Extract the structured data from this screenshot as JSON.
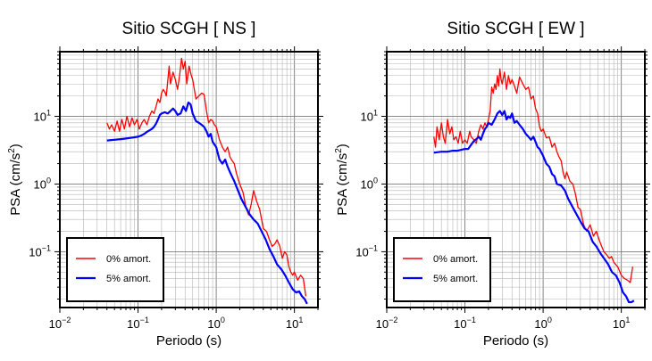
{
  "chart_data": [
    {
      "type": "line",
      "title": "Sitio SCGH [ NS ]",
      "xlabel": "Periodo (s)",
      "ylabel_main": "PSA (cm/s",
      "ylabel_sup": "2",
      "ylabel_tail": ")",
      "x_scale": "log",
      "y_scale": "log",
      "xlim": [
        0.01,
        20
      ],
      "ylim": [
        0.015,
        90
      ],
      "grid": true,
      "legend_position": "bottom-left",
      "x_ticks": [
        {
          "value": 0.01,
          "base": "10",
          "exp": "−2"
        },
        {
          "value": 0.1,
          "base": "10",
          "exp": "−1"
        },
        {
          "value": 1,
          "base": "10",
          "exp": "0"
        },
        {
          "value": 10,
          "base": "10",
          "exp": "1"
        }
      ],
      "y_ticks": [
        {
          "value": 0.1,
          "base": "10",
          "exp": "−1"
        },
        {
          "value": 1,
          "base": "10",
          "exp": "0"
        },
        {
          "value": 10,
          "base": "10",
          "exp": "1"
        }
      ],
      "series": [
        {
          "name": "0% amort.",
          "color": "#ff0000",
          "x": [
            0.04,
            0.043,
            0.046,
            0.05,
            0.054,
            0.058,
            0.062,
            0.067,
            0.072,
            0.078,
            0.084,
            0.09,
            0.097,
            0.104,
            0.112,
            0.12,
            0.13,
            0.14,
            0.15,
            0.16,
            0.17,
            0.18,
            0.19,
            0.2,
            0.21,
            0.22,
            0.23,
            0.24,
            0.25,
            0.26,
            0.28,
            0.3,
            0.32,
            0.34,
            0.36,
            0.38,
            0.4,
            0.42,
            0.45,
            0.48,
            0.5,
            0.55,
            0.6,
            0.65,
            0.7,
            0.75,
            0.8,
            0.85,
            0.9,
            0.95,
            1.0,
            1.1,
            1.2,
            1.3,
            1.4,
            1.5,
            1.6,
            1.7,
            1.8,
            1.9,
            2.0,
            2.2,
            2.4,
            2.6,
            2.8,
            3.0,
            3.3,
            3.6,
            4.0,
            4.4,
            4.8,
            5.2,
            5.6,
            6.0,
            6.5,
            7.0,
            7.5,
            8.0,
            8.5,
            9.0,
            9.5,
            10.0,
            11.0,
            12.0,
            13.0,
            14.0
          ],
          "y": [
            8.0,
            6.5,
            7.5,
            6.0,
            8.5,
            6.0,
            9.0,
            6.5,
            10.0,
            7.0,
            9.5,
            7.5,
            9.0,
            6.5,
            8.0,
            9.0,
            7.5,
            10.0,
            12.0,
            11.0,
            14.0,
            18.0,
            16.0,
            22.0,
            25.0,
            23.0,
            20.0,
            33.0,
            55.0,
            30.0,
            45.0,
            35.0,
            25.0,
            40.0,
            72.0,
            50.0,
            65.0,
            30.0,
            55.0,
            40.0,
            35.0,
            18.0,
            20.0,
            22.0,
            21.0,
            12.0,
            8.0,
            9.0,
            8.5,
            7.5,
            7.0,
            4.5,
            3.5,
            3.0,
            3.5,
            2.5,
            2.2,
            2.0,
            1.5,
            1.2,
            1.0,
            0.75,
            0.45,
            0.35,
            0.5,
            0.8,
            0.55,
            0.42,
            0.22,
            0.2,
            0.15,
            0.12,
            0.13,
            0.15,
            0.12,
            0.08,
            0.1,
            0.09,
            0.06,
            0.05,
            0.045,
            0.05,
            0.038,
            0.045,
            0.04,
            0.022
          ]
        },
        {
          "name": "5% amort.",
          "color": "#0000ff",
          "x": [
            0.04,
            0.05,
            0.06,
            0.07,
            0.08,
            0.09,
            0.1,
            0.11,
            0.12,
            0.13,
            0.14,
            0.15,
            0.16,
            0.17,
            0.18,
            0.19,
            0.2,
            0.22,
            0.24,
            0.26,
            0.28,
            0.3,
            0.32,
            0.35,
            0.38,
            0.41,
            0.44,
            0.47,
            0.5,
            0.55,
            0.6,
            0.65,
            0.7,
            0.75,
            0.8,
            0.85,
            0.9,
            1.0,
            1.1,
            1.2,
            1.3,
            1.4,
            1.5,
            1.7,
            1.9,
            2.1,
            2.4,
            2.7,
            3.0,
            3.4,
            3.8,
            4.3,
            4.8,
            5.4,
            6.0,
            6.8,
            7.6,
            8.5,
            9.5,
            10.5,
            11.5,
            12.5,
            13.5,
            14.5
          ],
          "y": [
            4.4,
            4.5,
            4.6,
            4.7,
            4.8,
            4.9,
            5.0,
            5.2,
            5.5,
            5.9,
            6.2,
            6.5,
            7.0,
            7.8,
            9.0,
            10.5,
            11.0,
            11.5,
            11.0,
            12.0,
            13.0,
            12.0,
            10.5,
            11.0,
            14.0,
            12.0,
            16.0,
            15.0,
            11.0,
            8.5,
            8.0,
            7.5,
            7.0,
            6.0,
            5.0,
            5.5,
            4.2,
            3.5,
            2.3,
            2.0,
            2.3,
            1.8,
            1.5,
            1.1,
            0.8,
            0.6,
            0.45,
            0.35,
            0.3,
            0.26,
            0.2,
            0.15,
            0.11,
            0.085,
            0.065,
            0.055,
            0.045,
            0.035,
            0.028,
            0.025,
            0.026,
            0.022,
            0.02,
            0.017
          ]
        }
      ]
    },
    {
      "type": "line",
      "title": "Sitio SCGH [ EW ]",
      "xlabel": "Periodo (s)",
      "ylabel_main": "PSA (cm/s",
      "ylabel_sup": "2",
      "ylabel_tail": ")",
      "x_scale": "log",
      "y_scale": "log",
      "xlim": [
        0.01,
        20
      ],
      "ylim": [
        0.015,
        90
      ],
      "grid": true,
      "legend_position": "bottom-left",
      "x_ticks": [
        {
          "value": 0.01,
          "base": "10",
          "exp": "−2"
        },
        {
          "value": 0.1,
          "base": "10",
          "exp": "−1"
        },
        {
          "value": 1,
          "base": "10",
          "exp": "0"
        },
        {
          "value": 10,
          "base": "10",
          "exp": "1"
        }
      ],
      "y_ticks": [
        {
          "value": 0.1,
          "base": "10",
          "exp": "−1"
        },
        {
          "value": 1,
          "base": "10",
          "exp": "0"
        },
        {
          "value": 10,
          "base": "10",
          "exp": "1"
        }
      ],
      "series": [
        {
          "name": "0% amort.",
          "color": "#ff0000",
          "x": [
            0.04,
            0.042,
            0.044,
            0.047,
            0.05,
            0.053,
            0.056,
            0.06,
            0.064,
            0.068,
            0.072,
            0.077,
            0.082,
            0.087,
            0.093,
            0.1,
            0.107,
            0.115,
            0.12,
            0.13,
            0.14,
            0.15,
            0.16,
            0.17,
            0.18,
            0.19,
            0.2,
            0.21,
            0.22,
            0.23,
            0.24,
            0.25,
            0.26,
            0.27,
            0.28,
            0.29,
            0.3,
            0.32,
            0.34,
            0.36,
            0.38,
            0.4,
            0.43,
            0.46,
            0.5,
            0.55,
            0.6,
            0.65,
            0.7,
            0.75,
            0.8,
            0.85,
            0.9,
            0.95,
            1.0,
            1.1,
            1.2,
            1.3,
            1.4,
            1.5,
            1.6,
            1.7,
            1.8,
            1.9,
            2.0,
            2.2,
            2.4,
            2.6,
            2.8,
            3.0,
            3.3,
            3.6,
            4.0,
            4.4,
            4.8,
            5.2,
            5.6,
            6.0,
            6.5,
            7.0,
            7.5,
            8.0,
            9.0,
            10.0,
            11.0,
            12.0,
            13.0,
            14.0
          ],
          "y": [
            5.0,
            3.5,
            7.0,
            4.5,
            8.0,
            5.0,
            4.0,
            9.0,
            5.5,
            7.0,
            4.5,
            5.0,
            4.0,
            6.0,
            4.0,
            4.5,
            4.0,
            6.0,
            5.0,
            4.5,
            4.0,
            6.0,
            7.5,
            6.5,
            8.0,
            7.0,
            9.0,
            12.0,
            27.0,
            22.0,
            30.0,
            25.0,
            40.0,
            28.0,
            50.0,
            35.0,
            30.0,
            45.0,
            25.0,
            40.0,
            30.0,
            35.0,
            28.0,
            22.0,
            38.0,
            30.0,
            25.0,
            27.0,
            18.0,
            20.0,
            13.0,
            11.0,
            7.0,
            6.0,
            6.5,
            4.8,
            5.0,
            3.5,
            4.0,
            3.0,
            2.5,
            2.2,
            1.5,
            1.2,
            1.5,
            1.1,
            1.0,
            0.7,
            0.45,
            0.42,
            0.25,
            0.2,
            0.25,
            0.17,
            0.2,
            0.15,
            0.12,
            0.1,
            0.09,
            0.08,
            0.085,
            0.07,
            0.06,
            0.045,
            0.04,
            0.038,
            0.035,
            0.06
          ]
        },
        {
          "name": "5% amort.",
          "color": "#0000ff",
          "x": [
            0.04,
            0.05,
            0.06,
            0.07,
            0.08,
            0.09,
            0.1,
            0.11,
            0.12,
            0.13,
            0.14,
            0.15,
            0.16,
            0.17,
            0.18,
            0.19,
            0.2,
            0.22,
            0.24,
            0.26,
            0.28,
            0.3,
            0.32,
            0.34,
            0.36,
            0.38,
            0.4,
            0.43,
            0.46,
            0.5,
            0.55,
            0.6,
            0.65,
            0.7,
            0.75,
            0.8,
            0.85,
            0.9,
            1.0,
            1.1,
            1.2,
            1.3,
            1.4,
            1.5,
            1.7,
            1.9,
            2.1,
            2.4,
            2.7,
            3.0,
            3.4,
            3.8,
            4.3,
            4.8,
            5.4,
            6.0,
            6.8,
            7.6,
            8.5,
            9.5,
            10.5,
            11.5,
            12.5,
            13.5,
            14.5
          ],
          "y": [
            2.9,
            3.0,
            3.0,
            3.1,
            3.1,
            3.2,
            3.3,
            3.3,
            3.8,
            4.3,
            4.6,
            5.0,
            4.5,
            5.5,
            6.5,
            7.0,
            8.0,
            7.5,
            9.0,
            11.0,
            12.0,
            10.5,
            12.0,
            9.0,
            10.0,
            9.5,
            11.0,
            8.0,
            8.5,
            7.5,
            6.5,
            5.5,
            5.0,
            4.5,
            5.0,
            4.2,
            3.5,
            3.3,
            2.6,
            2.0,
            1.8,
            1.4,
            1.3,
            1.0,
            0.95,
            0.8,
            0.6,
            0.45,
            0.35,
            0.28,
            0.22,
            0.2,
            0.14,
            0.12,
            0.095,
            0.08,
            0.065,
            0.05,
            0.045,
            0.035,
            0.025,
            0.022,
            0.018,
            0.018,
            0.019
          ]
        }
      ]
    }
  ]
}
